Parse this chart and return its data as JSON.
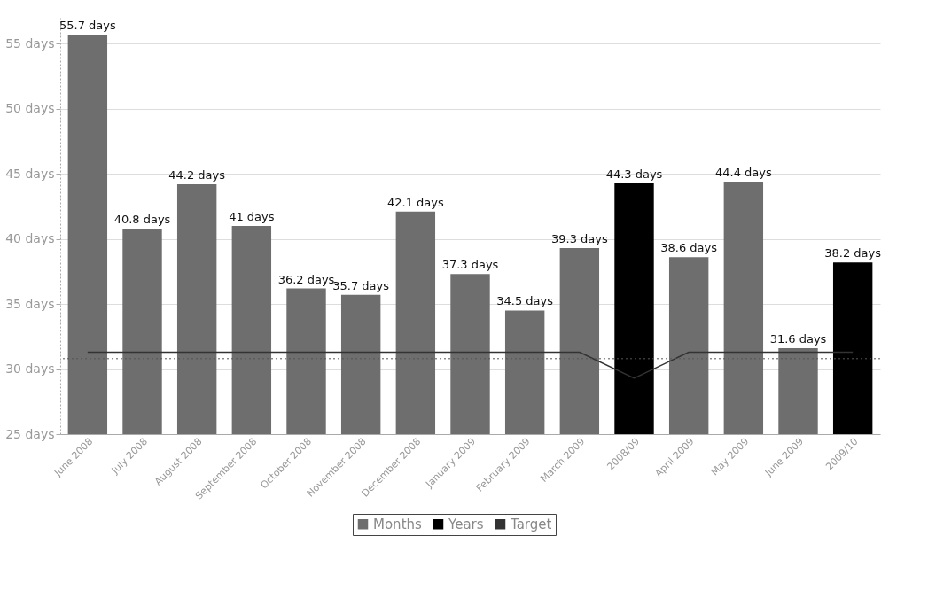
{
  "chart_data": {
    "type": "bar",
    "categories": [
      "June 2008",
      "July 2008",
      "August 2008",
      "September 2008",
      "October 2008",
      "November 2008",
      "December 2008",
      "January 2009",
      "February 2009",
      "March 2009",
      "2008/09",
      "April 2009",
      "May 2009",
      "June 2009",
      "2009/10"
    ],
    "series": [
      {
        "name": "Months",
        "type": "bar",
        "color": "#6e6e6e",
        "values": [
          55.7,
          40.8,
          44.2,
          41,
          36.2,
          35.7,
          42.1,
          37.3,
          34.5,
          39.3,
          null,
          38.6,
          44.4,
          31.6,
          null
        ],
        "value_labels": [
          "55.7 days",
          "40.8 days",
          "44.2 days",
          "41 days",
          "36.2 days",
          "35.7 days",
          "42.1 days",
          "37.3 days",
          "34.5 days",
          "39.3 days",
          null,
          "38.6 days",
          "44.4 days",
          "31.6 days",
          null
        ]
      },
      {
        "name": "Years",
        "type": "bar",
        "color": "#000000",
        "values": [
          null,
          null,
          null,
          null,
          null,
          null,
          null,
          null,
          null,
          null,
          44.3,
          null,
          null,
          null,
          38.2
        ],
        "value_labels": [
          null,
          null,
          null,
          null,
          null,
          null,
          null,
          null,
          null,
          null,
          "44.3 days",
          null,
          null,
          null,
          "38.2 days"
        ]
      },
      {
        "name": "Target",
        "type": "line",
        "color": "#333333",
        "values": [
          31.3,
          31.3,
          31.3,
          31.3,
          31.3,
          31.3,
          31.3,
          31.3,
          31.3,
          31.3,
          29.3,
          31.3,
          31.3,
          31.3,
          31.3
        ]
      }
    ],
    "ylim": [
      25,
      57
    ],
    "yticks": [
      {
        "value": 25,
        "label": "25 days"
      },
      {
        "value": 30,
        "label": "30 days"
      },
      {
        "value": 35,
        "label": "35 days"
      },
      {
        "value": 40,
        "label": "40 days"
      },
      {
        "value": 45,
        "label": "45 days"
      },
      {
        "value": 50,
        "label": "50 days"
      },
      {
        "value": 55,
        "label": "55 days"
      }
    ],
    "ref_lines": [
      {
        "axis": "y",
        "value": 30.8,
        "line_style": "dotted",
        "color": "#555555"
      }
    ],
    "grid": "y",
    "legend": "bottom"
  }
}
